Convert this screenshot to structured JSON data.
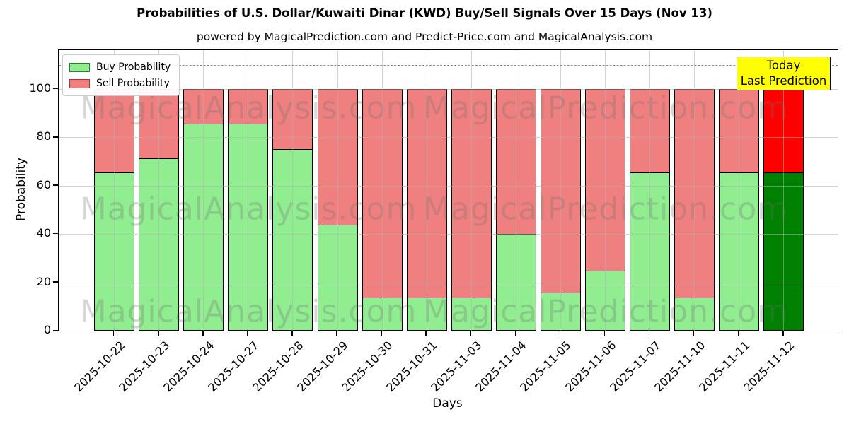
{
  "title": "Probabilities of U.S. Dollar/Kuwaiti Dinar (KWD) Buy/Sell Signals Over 15 Days (Nov 13)",
  "subtitle": "powered by MagicalPrediction.com and Predict-Price.com and MagicalAnalysis.com",
  "legend": {
    "buy_label": "Buy Probability",
    "sell_label": "Sell Probability"
  },
  "annotation": {
    "line1": "Today",
    "line2": "Last Prediction",
    "background": "#ffff00"
  },
  "watermarks": {
    "left": "MagicalAnalysis.com",
    "right": "MagicalPrediction.com"
  },
  "colors": {
    "buy": "#90ee90",
    "sell": "#f08080",
    "today_buy": "#008000",
    "today_sell": "#ff0000",
    "bar_edge": "#000000",
    "grid": "#b0b0b0",
    "dashed_line": "#8a8a8a"
  },
  "chart_data": {
    "type": "bar",
    "stacked": true,
    "title": "Probabilities of U.S. Dollar/Kuwaiti Dinar (KWD) Buy/Sell Signals Over 15 Days (Nov 13)",
    "xlabel": "Days",
    "ylabel": "Probability",
    "categories": [
      "2025-10-22",
      "2025-10-23",
      "2025-10-24",
      "2025-10-27",
      "2025-10-28",
      "2025-10-29",
      "2025-10-30",
      "2025-10-31",
      "2025-11-03",
      "2025-11-04",
      "2025-11-05",
      "2025-11-06",
      "2025-11-07",
      "2025-11-10",
      "2025-11-11",
      "2025-11-12"
    ],
    "series": [
      {
        "name": "Buy Probability",
        "color": "#90ee90",
        "values": [
          65.6,
          71.5,
          86,
          86,
          75.3,
          44,
          13.8,
          13.8,
          13.8,
          40.3,
          16,
          25,
          65.6,
          13.8,
          65.6,
          65.6
        ]
      },
      {
        "name": "Sell Probability",
        "color": "#f08080",
        "values": [
          34.4,
          28.5,
          14,
          14,
          24.7,
          56,
          86.2,
          86.2,
          86.2,
          59.7,
          84,
          75,
          34.4,
          86.2,
          34.4,
          34.4
        ]
      }
    ],
    "today_index": 15,
    "today_colors": {
      "buy": "#008000",
      "sell": "#ff0000"
    },
    "yticks": [
      0,
      20,
      40,
      60,
      80,
      100
    ],
    "ylim": [
      0,
      116.1
    ],
    "dashed_line_y": 110,
    "grid": true,
    "legend_position": "upper left"
  }
}
